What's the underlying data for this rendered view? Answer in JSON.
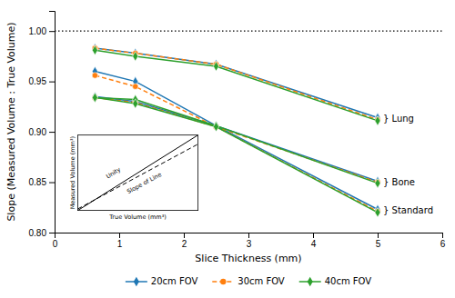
{
  "chart_data": [
    {
      "type": "line",
      "xlabel": "Slice Thickness (mm)",
      "ylabel": "Slope (Measured Volume : True Volume)",
      "xlim": [
        0,
        6
      ],
      "ylim": [
        0.8,
        1.02
      ],
      "xticks": [
        0,
        1,
        2,
        3,
        4,
        5,
        6
      ],
      "yticks": [
        {
          "value": 0.8,
          "label": "0.80"
        },
        0.85,
        {
          "value": 0.9,
          "label": "0.90"
        },
        0.95,
        {
          "value": 1.0,
          "label": "1.00"
        }
      ],
      "grid": false,
      "legend": "bottom",
      "hline": 1.0,
      "x": [
        0.625,
        1.25,
        2.5,
        5.0
      ],
      "series": [
        {
          "name": "20cm FOV",
          "marker": "diamond",
          "line_style": "solid",
          "values": [
            0.983,
            0.978,
            0.967,
            0.914
          ]
        },
        {
          "name": "20cm FOV",
          "marker": "diamond",
          "line_style": "solid",
          "values": [
            0.96,
            0.95,
            0.906,
            0.851
          ]
        },
        {
          "name": "20cm FOV",
          "marker": "diamond",
          "line_style": "solid",
          "values": [
            0.935,
            0.93,
            0.906,
            0.823
          ]
        },
        {
          "name": "30cm FOV",
          "marker": "circle",
          "line_style": "dashed",
          "values": [
            0.983,
            0.978,
            0.967,
            0.912
          ]
        },
        {
          "name": "30cm FOV",
          "marker": "circle",
          "line_style": "dashed",
          "values": [
            0.956,
            0.945,
            0.905,
            0.85
          ]
        },
        {
          "name": "30cm FOV",
          "marker": "circle",
          "line_style": "dashed",
          "values": [
            0.934,
            0.929,
            0.905,
            0.821
          ]
        },
        {
          "name": "40cm FOV",
          "marker": "diamond",
          "line_style": "solid",
          "values": [
            0.981,
            0.975,
            0.965,
            0.911
          ]
        },
        {
          "name": "40cm FOV",
          "marker": "diamond",
          "line_style": "solid",
          "values": [
            0.934,
            0.932,
            0.906,
            0.849
          ]
        },
        {
          "name": "40cm FOV",
          "marker": "diamond",
          "line_style": "solid",
          "values": [
            0.934,
            0.928,
            0.905,
            0.82
          ]
        }
      ],
      "annotations": [
        "} Lung",
        "} Bone",
        "} Standard"
      ]
    },
    {
      "type": "line",
      "xlabel": "True Volume (mm³)",
      "ylabel": "Measured Volume (mm³)",
      "xlim": [
        0,
        1
      ],
      "ylim": [
        0,
        1
      ],
      "tick_labels": false,
      "x": [
        0,
        1
      ],
      "series": [
        {
          "color": "#000000",
          "line_style": "solid",
          "values": [
            0,
            1
          ]
        },
        {
          "color": "#000000",
          "line_style": "dashed",
          "values": [
            0.02,
            0.88
          ]
        }
      ],
      "annotations": [
        "Unity",
        "Slope of Line"
      ]
    }
  ]
}
